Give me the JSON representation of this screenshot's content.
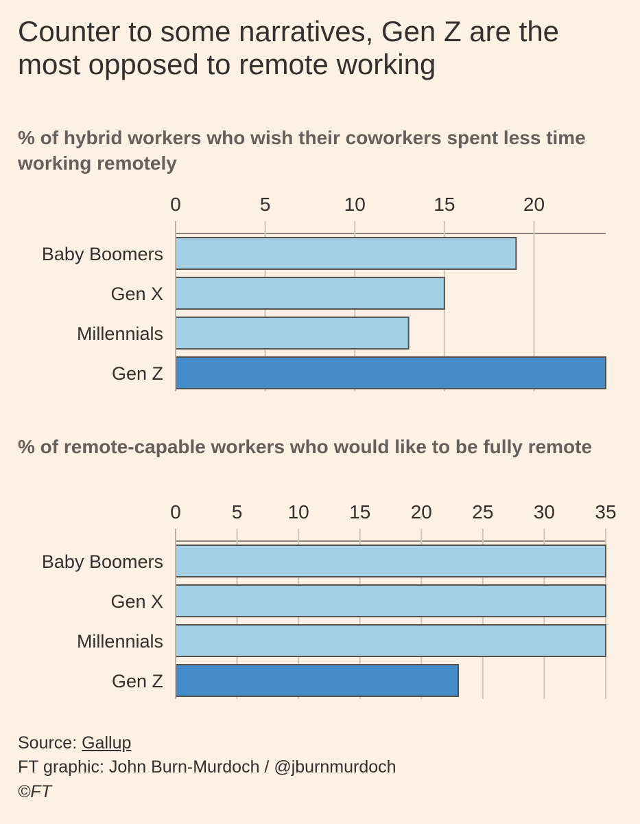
{
  "title": "Counter to some narratives, Gen Z are the most opposed to remote working",
  "chart_data": [
    {
      "type": "bar",
      "orientation": "horizontal",
      "title": "% of hybrid workers who wish their coworkers spent less time working remotely",
      "categories": [
        "Baby Boomers",
        "Gen X",
        "Millennials",
        "Gen Z"
      ],
      "values": [
        19,
        15,
        13,
        24
      ],
      "xlim": [
        0,
        24
      ],
      "ticks": [
        0,
        5,
        10,
        15,
        20
      ],
      "grid": true,
      "highlight": "Gen Z",
      "colors": {
        "default": "#a3d0e4",
        "highlight": "#438cc8"
      }
    },
    {
      "type": "bar",
      "orientation": "horizontal",
      "title": "% of remote-capable workers who would like to be fully remote",
      "categories": [
        "Baby Boomers",
        "Gen X",
        "Millennials",
        "Gen Z"
      ],
      "values": [
        35,
        35,
        35,
        23
      ],
      "xlim": [
        0,
        35
      ],
      "ticks": [
        0,
        5,
        10,
        15,
        20,
        25,
        30,
        35
      ],
      "grid": true,
      "highlight": "Gen Z",
      "colors": {
        "default": "#a3d0e4",
        "highlight": "#438cc8"
      }
    }
  ],
  "footer": {
    "source_prefix": "Source: ",
    "source_link": "Gallup",
    "credit": "FT graphic: John Burn-Murdoch / @jburnmurdoch",
    "copyright": "©FT"
  }
}
